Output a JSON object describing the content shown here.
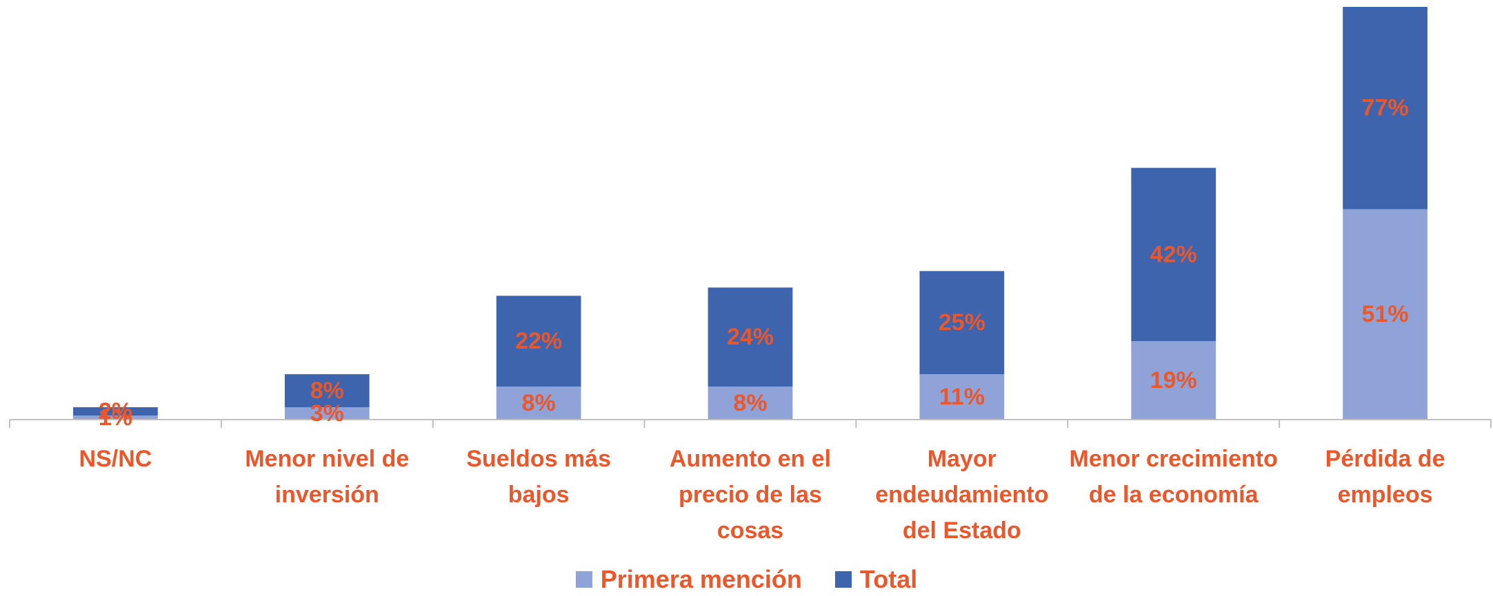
{
  "chart_data": {
    "type": "stacked_bar",
    "categories": [
      "NS/NC",
      "Menor nivel de inversión",
      "Sueldos más bajos",
      "Aumento en el precio de las cosas",
      "Mayor endeudamiento del Estado",
      "Menor crecimiento de la economía",
      "Pérdida de empleos"
    ],
    "series": [
      {
        "name": "Primera mención",
        "color": "#8fa3d8",
        "values": [
          1,
          3,
          8,
          8,
          11,
          19,
          51
        ],
        "value_labels": [
          "1%",
          "3%",
          "8%",
          "8%",
          "11%",
          "19%",
          "51%"
        ]
      },
      {
        "name": "Total",
        "color": "#3d64ad",
        "values": [
          2,
          8,
          22,
          24,
          25,
          42,
          77
        ],
        "value_labels": [
          "2%",
          "8%",
          "22%",
          "24%",
          "25%",
          "42%",
          "77%"
        ]
      }
    ],
    "ylim": [
      0,
      100
    ],
    "label_color": "#e9572b",
    "legend": "bottom"
  }
}
